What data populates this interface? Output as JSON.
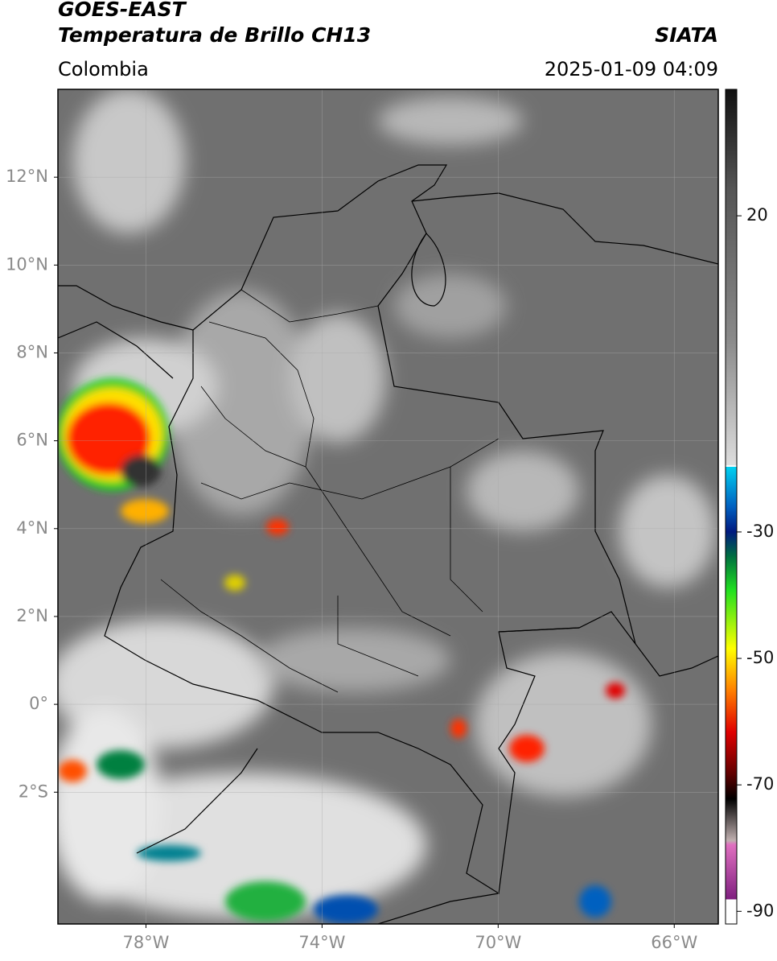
{
  "header": {
    "satellite": "GOES-EAST",
    "product": "Temperatura de Brillo CH13",
    "source": "SIATA",
    "region": "Colombia",
    "datetime": "2025-01-09 04:09"
  },
  "map": {
    "xlim": [
      -80,
      -65
    ],
    "ylim": [
      -5,
      14
    ],
    "xticks": [
      {
        "value": -78,
        "label": "78°W"
      },
      {
        "value": -74,
        "label": "74°W"
      },
      {
        "value": -70,
        "label": "70°W"
      },
      {
        "value": -66,
        "label": "66°W"
      }
    ],
    "yticks": [
      {
        "value": 12,
        "label": "12°N"
      },
      {
        "value": 10,
        "label": "10°N"
      },
      {
        "value": 8,
        "label": "8°N"
      },
      {
        "value": 6,
        "label": "6°N"
      },
      {
        "value": 4,
        "label": "4°N"
      },
      {
        "value": 2,
        "label": "2°N"
      },
      {
        "value": 0,
        "label": "0°"
      },
      {
        "value": -2,
        "label": "2°S"
      }
    ]
  },
  "colorbar": {
    "lim": [
      -92,
      40
    ],
    "ticks": [
      20,
      -30,
      -50,
      -70,
      -90
    ]
  }
}
